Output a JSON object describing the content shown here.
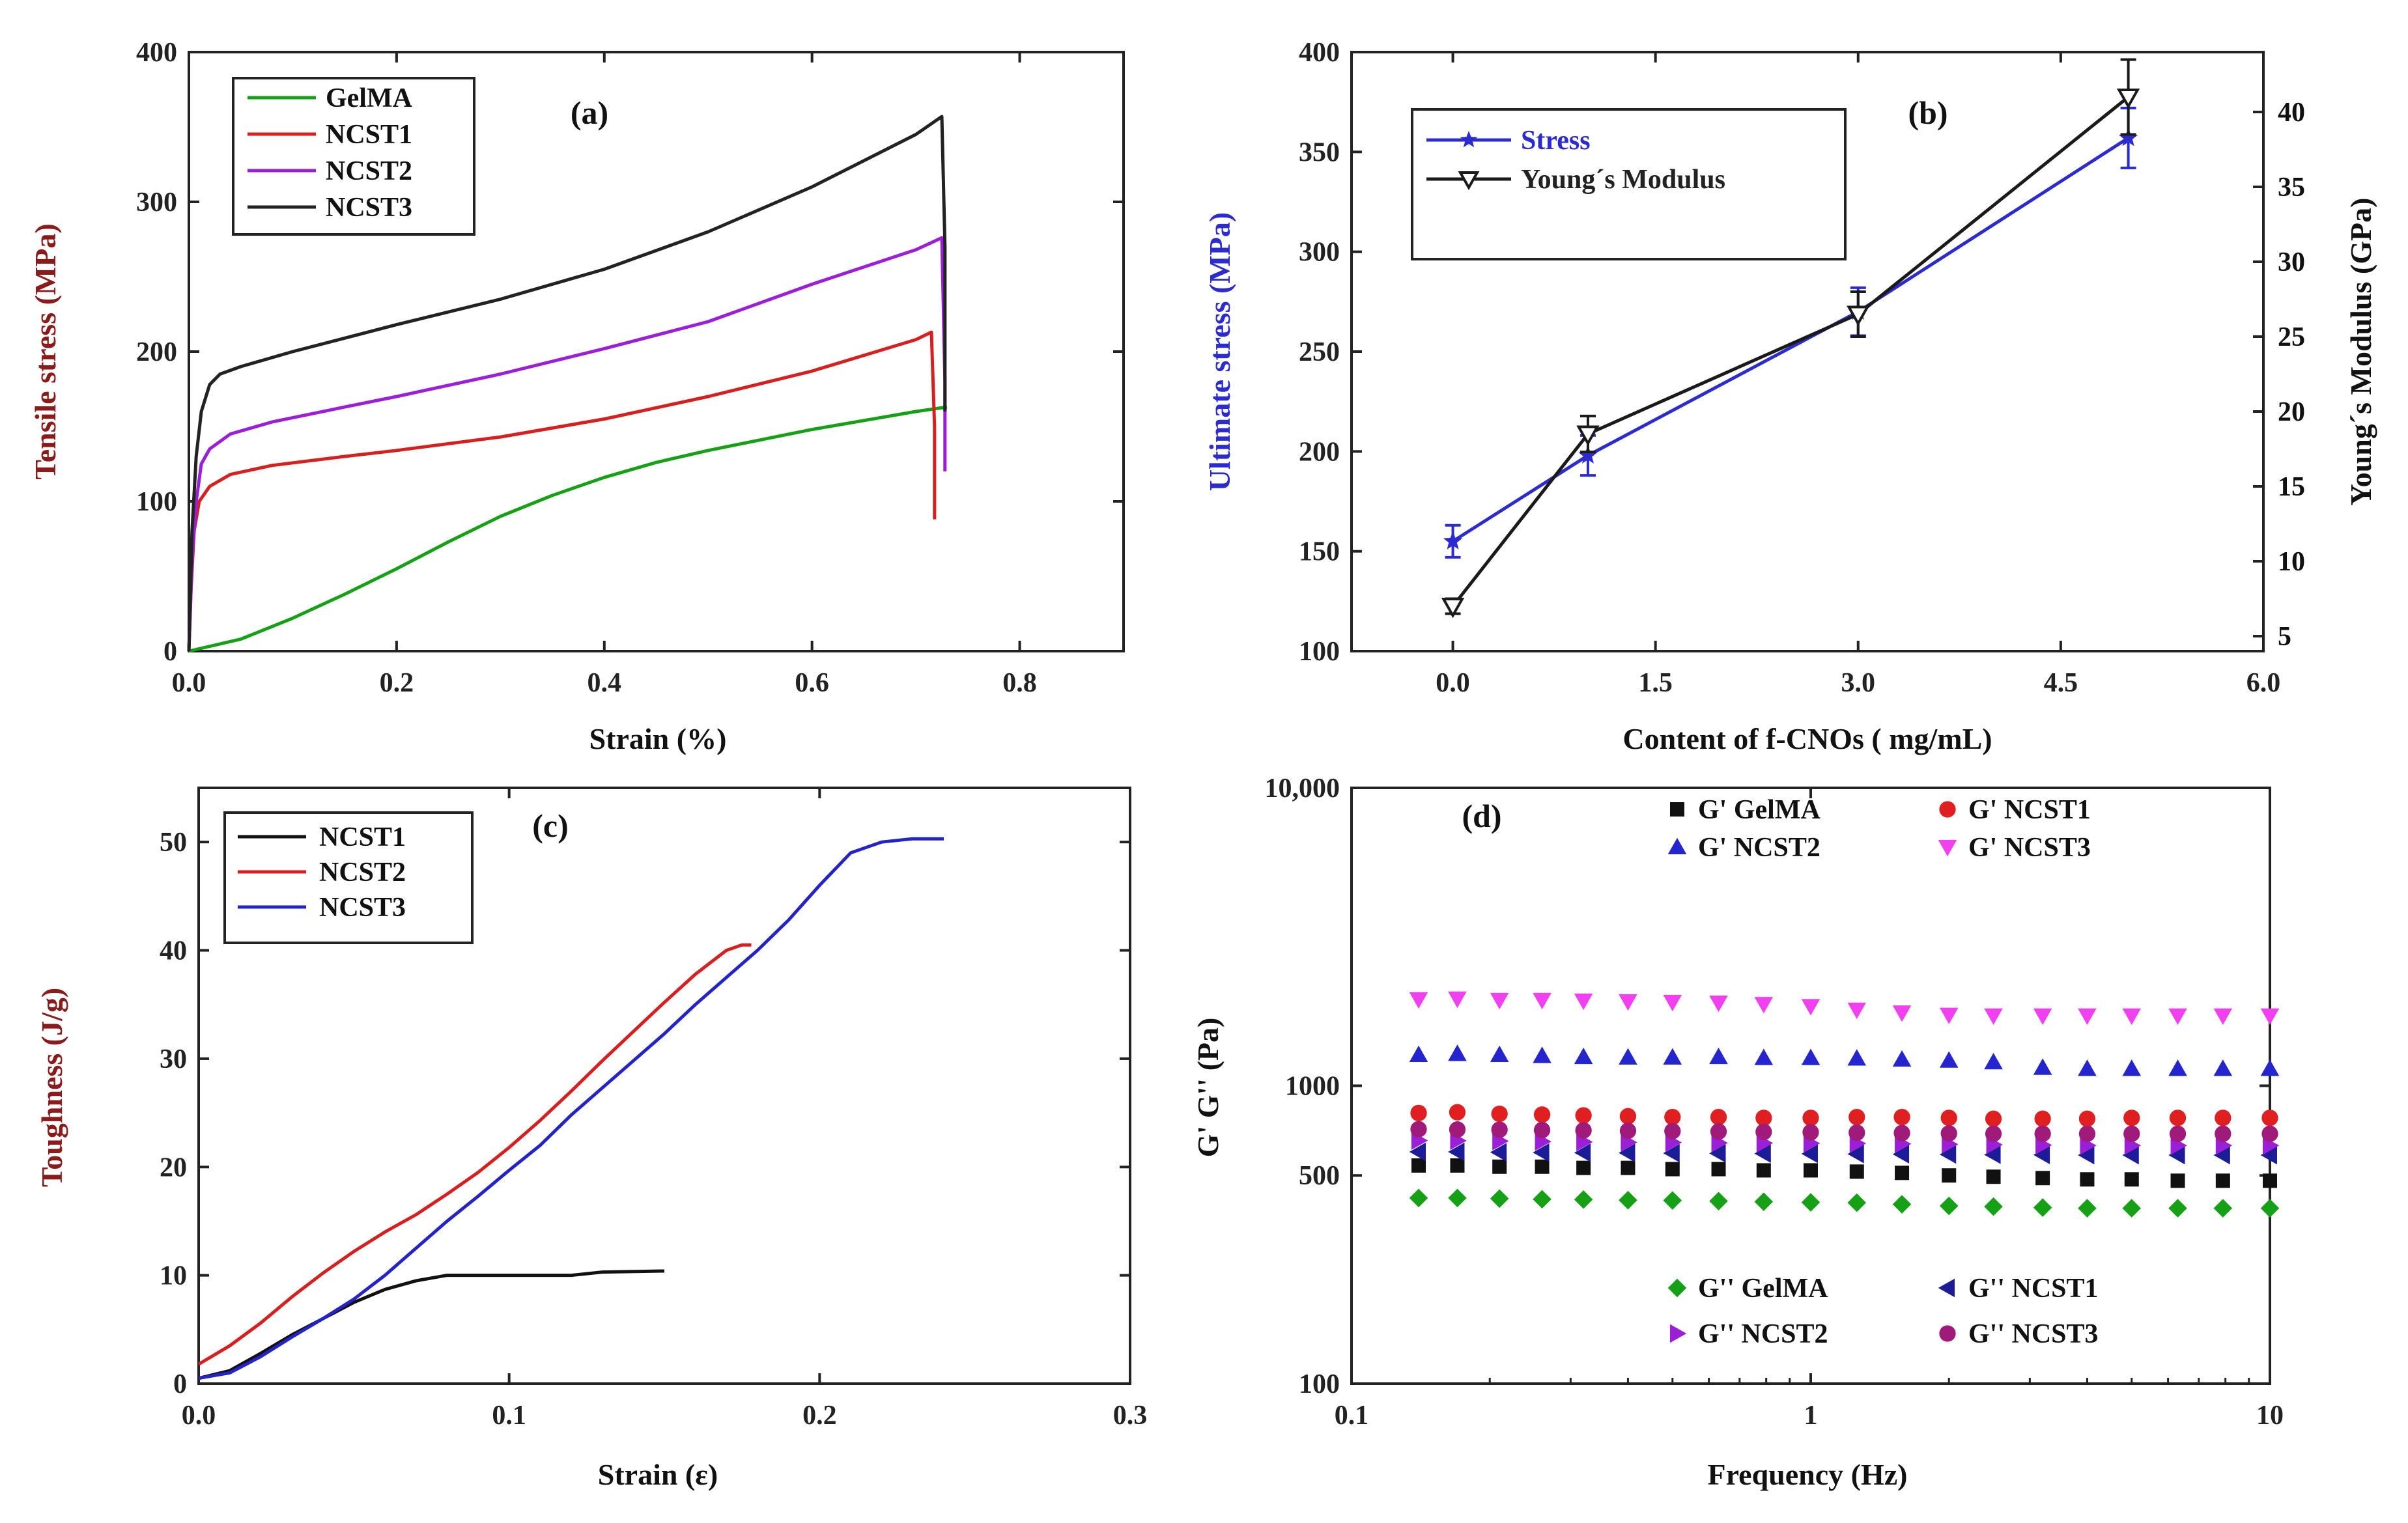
{
  "figure": {
    "background": "#ffffff"
  },
  "chart_data": [
    {
      "panel": "a",
      "type": "line",
      "title": "(a)",
      "xlabel": "Strain (%)",
      "ylabel": "Tensile stress (MPa)",
      "xlim": [
        0,
        0.9
      ],
      "ylim": [
        0,
        400
      ],
      "xticks": [
        "0.0",
        "0.2",
        "0.4",
        "0.6",
        "0.8"
      ],
      "yticks": [
        "0",
        "100",
        "200",
        "300",
        "400"
      ],
      "xtick_values": [
        0,
        0.2,
        0.4,
        0.6,
        0.8
      ],
      "ytick_values": [
        0,
        100,
        200,
        300,
        400
      ],
      "legend_position": "top-left",
      "series": [
        {
          "name": "GelMA",
          "color": "#16a016",
          "x": [
            0,
            0.05,
            0.1,
            0.15,
            0.2,
            0.25,
            0.3,
            0.35,
            0.4,
            0.45,
            0.5,
            0.55,
            0.6,
            0.65,
            0.7,
            0.73
          ],
          "y": [
            0,
            8,
            22,
            38,
            55,
            73,
            90,
            104,
            116,
            126,
            134,
            141,
            148,
            154,
            160,
            163
          ]
        },
        {
          "name": "NCST1",
          "color": "#d62020",
          "x": [
            0,
            0.002,
            0.005,
            0.01,
            0.02,
            0.04,
            0.08,
            0.15,
            0.2,
            0.3,
            0.4,
            0.5,
            0.6,
            0.7,
            0.715,
            0.718,
            0.718
          ],
          "y": [
            0,
            40,
            80,
            100,
            110,
            118,
            124,
            130,
            134,
            143,
            155,
            170,
            187,
            208,
            213,
            150,
            88
          ]
        },
        {
          "name": "NCST2",
          "color": "#9a1fd6",
          "x": [
            0,
            0.003,
            0.007,
            0.012,
            0.02,
            0.04,
            0.08,
            0.15,
            0.2,
            0.3,
            0.4,
            0.5,
            0.6,
            0.7,
            0.725,
            0.728,
            0.728
          ],
          "y": [
            0,
            60,
            100,
            125,
            135,
            145,
            153,
            163,
            170,
            185,
            202,
            220,
            245,
            268,
            276,
            180,
            120
          ]
        },
        {
          "name": "NCST3",
          "color": "#222222",
          "x": [
            0,
            0.003,
            0.007,
            0.012,
            0.02,
            0.03,
            0.05,
            0.1,
            0.15,
            0.2,
            0.3,
            0.4,
            0.5,
            0.6,
            0.7,
            0.725,
            0.728,
            0.728
          ],
          "y": [
            0,
            80,
            130,
            160,
            178,
            185,
            190,
            200,
            209,
            218,
            235,
            255,
            280,
            310,
            345,
            357,
            270,
            160
          ]
        }
      ]
    },
    {
      "panel": "b",
      "type": "line",
      "title": "(b)",
      "xlabel": "Content of f-CNOs ( mg/mL)",
      "ylabel": "Ultimate stress (MPa)",
      "ylabel_right": "Young´s Modulus (GPa)",
      "xlim": [
        -0.75,
        6.0
      ],
      "ylim": [
        100,
        400
      ],
      "ylim_right": [
        4,
        44
      ],
      "xticks": [
        "0.0",
        "1.5",
        "3.0",
        "4.5",
        "6.0"
      ],
      "xtick_values": [
        0,
        1.5,
        3.0,
        4.5,
        6.0
      ],
      "yticks": [
        "100",
        "150",
        "200",
        "250",
        "300",
        "350",
        "400"
      ],
      "ytick_values": [
        100,
        150,
        200,
        250,
        300,
        350,
        400
      ],
      "yticks_right": [
        "5",
        "10",
        "15",
        "20",
        "25",
        "30",
        "35",
        "40"
      ],
      "ytick_right_values": [
        5,
        10,
        15,
        20,
        25,
        30,
        35,
        40
      ],
      "legend_position": "top-left",
      "series": [
        {
          "name": "Stress",
          "color": "#2b2bd0",
          "axis": "left",
          "marker": "star",
          "x": [
            0,
            1,
            3,
            5
          ],
          "y": [
            155,
            198,
            270,
            357
          ],
          "error": [
            8,
            10,
            12,
            15
          ]
        },
        {
          "name": "Young´s Modulus",
          "color": "#1a1a1a",
          "axis": "right",
          "marker": "triangle-down-open",
          "x": [
            0,
            1,
            3,
            5
          ],
          "y": [
            7,
            18.5,
            26.5,
            41
          ],
          "error": [
            0.5,
            1.2,
            1.5,
            2.5
          ]
        }
      ]
    },
    {
      "panel": "c",
      "type": "line",
      "title": "(c)",
      "xlabel": "Strain (ε)",
      "ylabel": "Toughness (J/g)",
      "xlim": [
        0,
        0.3
      ],
      "ylim": [
        0,
        55
      ],
      "xticks": [
        "0.0",
        "0.1",
        "0.2",
        "0.3"
      ],
      "xtick_values": [
        0,
        0.1,
        0.2,
        0.3
      ],
      "yticks": [
        "0",
        "10",
        "20",
        "30",
        "40",
        "50"
      ],
      "ytick_values": [
        0,
        10,
        20,
        30,
        40,
        50
      ],
      "legend_position": "top-left",
      "series": [
        {
          "name": "NCST1",
          "color": "#111111",
          "x": [
            0,
            0.01,
            0.02,
            0.03,
            0.04,
            0.05,
            0.06,
            0.07,
            0.08,
            0.1,
            0.12,
            0.13,
            0.15
          ],
          "y": [
            0.5,
            1.2,
            2.8,
            4.5,
            6,
            7.5,
            8.7,
            9.5,
            10,
            10,
            10,
            10.3,
            10.4
          ]
        },
        {
          "name": "NCST2",
          "color": "#d62020",
          "x": [
            0,
            0.01,
            0.02,
            0.03,
            0.04,
            0.05,
            0.06,
            0.07,
            0.08,
            0.09,
            0.1,
            0.11,
            0.12,
            0.13,
            0.14,
            0.15,
            0.16,
            0.17,
            0.175,
            0.178
          ],
          "y": [
            1.8,
            3.5,
            5.6,
            8,
            10.2,
            12.2,
            14,
            15.6,
            17.5,
            19.5,
            21.8,
            24.3,
            27,
            29.8,
            32.5,
            35.2,
            37.8,
            40,
            40.5,
            40.5
          ]
        },
        {
          "name": "NCST3",
          "color": "#2323c8",
          "x": [
            0,
            0.01,
            0.02,
            0.03,
            0.04,
            0.05,
            0.06,
            0.07,
            0.08,
            0.09,
            0.1,
            0.11,
            0.12,
            0.13,
            0.14,
            0.15,
            0.16,
            0.17,
            0.18,
            0.19,
            0.2,
            0.21,
            0.22,
            0.23,
            0.24
          ],
          "y": [
            0.5,
            1,
            2.5,
            4.3,
            6,
            7.8,
            10,
            12.5,
            15,
            17.3,
            19.7,
            22,
            24.8,
            27.3,
            29.8,
            32.3,
            35,
            37.5,
            40,
            42.8,
            46,
            49,
            50,
            50.3,
            50.3
          ]
        }
      ]
    },
    {
      "panel": "d",
      "type": "scatter",
      "title": "(d)",
      "xlabel": "Frequency (Hz)",
      "ylabel": "G' G'' (Pa)",
      "xscale": "log",
      "yscale": "log",
      "xlim": [
        0.1,
        10
      ],
      "ylim": [
        100,
        10000
      ],
      "xticks": [
        "0.1",
        "1",
        "10"
      ],
      "xtick_values": [
        0.1,
        1,
        10
      ],
      "yticks": [
        "100",
        "500",
        "1000",
        "10,000"
      ],
      "ytick_values": [
        100,
        500,
        1000,
        10000
      ],
      "legend_positions": [
        "top",
        "bottom"
      ],
      "frequencies": [
        0.14,
        0.17,
        0.21,
        0.26,
        0.32,
        0.4,
        0.5,
        0.63,
        0.79,
        1.0,
        1.26,
        1.58,
        2.0,
        2.5,
        3.2,
        4.0,
        5.0,
        6.3,
        7.9,
        10.0
      ],
      "series": [
        {
          "name": "G' GelMA",
          "color": "#111111",
          "marker": "square",
          "values": [
            540,
            540,
            535,
            535,
            530,
            530,
            525,
            525,
            520,
            520,
            515,
            510,
            500,
            495,
            490,
            485,
            485,
            480,
            480,
            480
          ]
        },
        {
          "name": "G' NCST1",
          "color": "#e02020",
          "marker": "circle",
          "values": [
            810,
            815,
            805,
            800,
            795,
            790,
            785,
            785,
            780,
            780,
            785,
            785,
            780,
            775,
            775,
            775,
            780,
            780,
            780,
            780
          ]
        },
        {
          "name": "G' NCST2",
          "color": "#2525d0",
          "marker": "triangle-up",
          "values": [
            1270,
            1280,
            1270,
            1260,
            1250,
            1245,
            1245,
            1250,
            1240,
            1240,
            1235,
            1225,
            1215,
            1200,
            1150,
            1140,
            1140,
            1140,
            1140,
            1140
          ]
        },
        {
          "name": "G' NCST3",
          "color": "#f040f0",
          "marker": "triangle-down",
          "values": [
            1950,
            1960,
            1940,
            1940,
            1930,
            1920,
            1910,
            1900,
            1880,
            1850,
            1800,
            1760,
            1730,
            1720,
            1720,
            1720,
            1720,
            1720,
            1720,
            1720
          ]
        },
        {
          "name": "G'' GelMA",
          "color": "#16a016",
          "marker": "diamond",
          "values": [
            420,
            420,
            418,
            416,
            415,
            413,
            412,
            410,
            408,
            406,
            405,
            400,
            395,
            393,
            390,
            388,
            388,
            388,
            388,
            388
          ]
        },
        {
          "name": "G'' NCST1",
          "color": "#1c1c99",
          "marker": "triangle-left",
          "values": [
            600,
            600,
            598,
            597,
            596,
            595,
            594,
            593,
            592,
            591,
            590,
            589,
            588,
            587,
            586,
            585,
            585,
            585,
            585,
            585
          ]
        },
        {
          "name": "G'' NCST2",
          "color": "#9a1fd6",
          "marker": "triangle-right",
          "values": [
            655,
            654,
            652,
            650,
            648,
            646,
            645,
            643,
            642,
            641,
            640,
            638,
            636,
            634,
            632,
            630,
            630,
            630,
            630,
            630
          ]
        },
        {
          "name": "G'' NCST3",
          "color": "#a01a7a",
          "marker": "circle",
          "values": [
            715,
            713,
            712,
            710,
            708,
            706,
            704,
            702,
            700,
            698,
            696,
            694,
            692,
            690,
            690,
            690,
            690,
            690,
            690,
            690
          ]
        }
      ]
    }
  ]
}
